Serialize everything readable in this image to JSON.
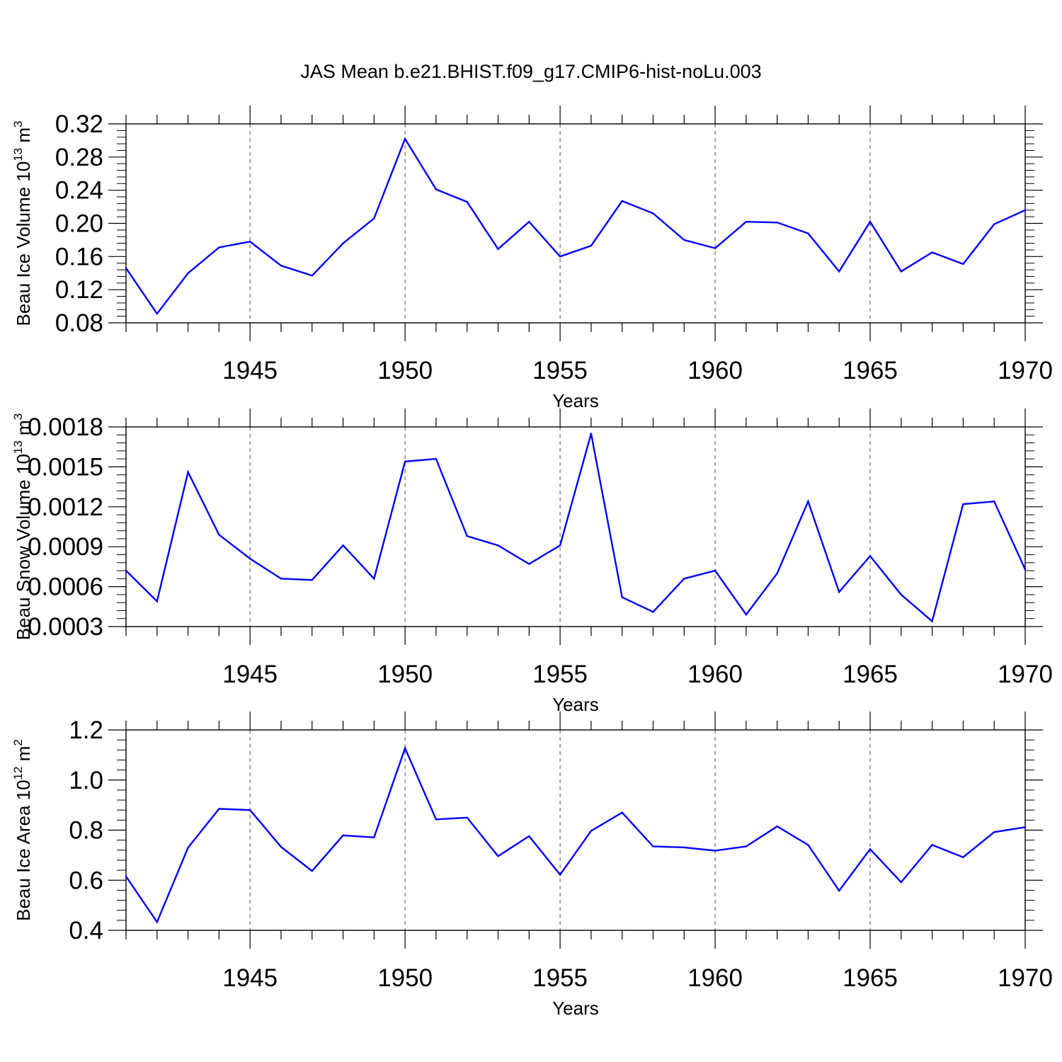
{
  "title": "JAS Mean b.e21.BHIST.f09_g17.CMIP6-hist-noLu.003",
  "line_color": "#0000ff",
  "grid_color": "#000000",
  "chart_data": [
    {
      "type": "line",
      "xlabel": "Years",
      "ylabel": "Beau Ice Volume 10",
      "ylabel_sup": "13",
      "ylabel_unit": "m",
      "ylabel_unit_sup": "3",
      "ylim": [
        0.08,
        0.32
      ],
      "yticks": [
        0.08,
        0.12,
        0.16,
        0.2,
        0.24,
        0.28,
        0.32
      ],
      "ytick_labels": [
        "0.08",
        "0.12",
        "0.16",
        "0.20",
        "0.24",
        "0.28",
        "0.32"
      ],
      "xlim": [
        1941,
        1970
      ],
      "xticks": [
        1945,
        1950,
        1955,
        1960,
        1965,
        1970
      ],
      "xtick_labels": [
        "1945",
        "1950",
        "1955",
        "1960",
        "1965",
        "1970"
      ],
      "grid": "vertical dashed at major ticks",
      "series": [
        {
          "x": [
            1941,
            1942,
            1943,
            1944,
            1945,
            1946,
            1947,
            1948,
            1949,
            1950,
            1951,
            1952,
            1953,
            1954,
            1955,
            1956,
            1957,
            1958,
            1959,
            1960,
            1961,
            1962,
            1963,
            1964,
            1965,
            1966,
            1967,
            1968,
            1969,
            1970
          ],
          "values": [
            0.146,
            0.091,
            0.14,
            0.171,
            0.178,
            0.149,
            0.137,
            0.176,
            0.206,
            0.302,
            0.241,
            0.226,
            0.169,
            0.202,
            0.16,
            0.173,
            0.227,
            0.212,
            0.18,
            0.17,
            0.202,
            0.201,
            0.188,
            0.142,
            0.202,
            0.142,
            0.165,
            0.151,
            0.199,
            0.216
          ]
        }
      ]
    },
    {
      "type": "line",
      "xlabel": "Years",
      "ylabel": "Beau Snow Volume 10",
      "ylabel_sup": "13",
      "ylabel_unit": "m",
      "ylabel_unit_sup": "3",
      "ylim": [
        0.0003,
        0.0018
      ],
      "yticks": [
        0.0003,
        0.0006,
        0.0009,
        0.0012,
        0.0015,
        0.0018
      ],
      "ytick_labels": [
        "0.0003",
        "0.0006",
        "0.0009",
        "0.0012",
        "0.0015",
        "0.0018"
      ],
      "xlim": [
        1941,
        1970
      ],
      "xticks": [
        1945,
        1950,
        1955,
        1960,
        1965,
        1970
      ],
      "xtick_labels": [
        "1945",
        "1950",
        "1955",
        "1960",
        "1965",
        "1970"
      ],
      "grid": "vertical dashed at major ticks",
      "series": [
        {
          "x": [
            1941,
            1942,
            1943,
            1944,
            1945,
            1946,
            1947,
            1948,
            1949,
            1950,
            1951,
            1952,
            1953,
            1954,
            1955,
            1956,
            1957,
            1958,
            1959,
            1960,
            1961,
            1962,
            1963,
            1964,
            1965,
            1966,
            1967,
            1968,
            1969,
            1970
          ],
          "values": [
            0.00072,
            0.00049,
            0.00146,
            0.00099,
            0.00081,
            0.00066,
            0.00065,
            0.00091,
            0.00066,
            0.00154,
            0.00156,
            0.00098,
            0.00091,
            0.00077,
            0.00091,
            0.00175,
            0.00052,
            0.00041,
            0.00066,
            0.00072,
            0.00039,
            0.0007,
            0.00124,
            0.00056,
            0.00083,
            0.00054,
            0.00034,
            0.00122,
            0.00124,
            0.00073
          ]
        }
      ]
    },
    {
      "type": "line",
      "xlabel": "Years",
      "ylabel": "Beau Ice Area 10",
      "ylabel_sup": "12",
      "ylabel_unit": "m",
      "ylabel_unit_sup": "2",
      "ylim": [
        0.4,
        1.2
      ],
      "yticks": [
        0.4,
        0.6,
        0.8,
        1.0,
        1.2
      ],
      "ytick_labels": [
        "0.4",
        "0.6",
        "0.8",
        "1.0",
        "1.2"
      ],
      "xlim": [
        1941,
        1970
      ],
      "xticks": [
        1945,
        1950,
        1955,
        1960,
        1965,
        1970
      ],
      "xtick_labels": [
        "1945",
        "1950",
        "1955",
        "1960",
        "1965",
        "1970"
      ],
      "grid": "vertical dashed at major ticks",
      "series": [
        {
          "x": [
            1941,
            1942,
            1943,
            1944,
            1945,
            1946,
            1947,
            1948,
            1949,
            1950,
            1951,
            1952,
            1953,
            1954,
            1955,
            1956,
            1957,
            1958,
            1959,
            1960,
            1961,
            1962,
            1963,
            1964,
            1965,
            1966,
            1967,
            1968,
            1969,
            1970
          ],
          "values": [
            0.615,
            0.433,
            0.73,
            0.885,
            0.88,
            0.733,
            0.637,
            0.779,
            0.771,
            1.127,
            0.843,
            0.85,
            0.696,
            0.776,
            0.622,
            0.797,
            0.87,
            0.735,
            0.731,
            0.718,
            0.735,
            0.815,
            0.741,
            0.558,
            0.724,
            0.592,
            0.741,
            0.692,
            0.792,
            0.812
          ]
        }
      ]
    }
  ]
}
